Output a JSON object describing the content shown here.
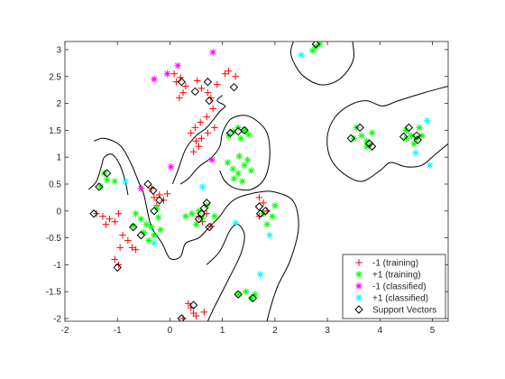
{
  "chart_data": {
    "type": "scatter",
    "title": "",
    "xlabel": "",
    "ylabel": "",
    "xlim": [
      -2,
      5.3
    ],
    "ylim": [
      -2.05,
      3.15
    ],
    "x_ticks": [
      -2,
      -1,
      0,
      1,
      2,
      3,
      4,
      5
    ],
    "y_ticks": [
      -2,
      -1.5,
      -1,
      -0.5,
      0,
      0.5,
      1,
      1.5,
      2,
      2.5,
      3
    ],
    "grid": false,
    "legend_position": "bottom-right",
    "series": [
      {
        "name": "-1 (training)",
        "marker": "plus",
        "color": "#ff0000",
        "points": [
          [
            0.08,
            2.55
          ],
          [
            0.2,
            2.48
          ],
          [
            0.12,
            2.4
          ],
          [
            0.3,
            2.32
          ],
          [
            0.25,
            2.2
          ],
          [
            0.18,
            2.1
          ],
          [
            0.52,
            2.42
          ],
          [
            0.6,
            2.28
          ],
          [
            0.72,
            2.2
          ],
          [
            0.78,
            2.1
          ],
          [
            0.9,
            2.35
          ],
          [
            1.05,
            2.55
          ],
          [
            1.12,
            2.6
          ],
          [
            1.25,
            2.5
          ],
          [
            0.82,
            1.9
          ],
          [
            0.7,
            1.75
          ],
          [
            0.58,
            1.65
          ],
          [
            0.48,
            1.55
          ],
          [
            0.4,
            1.45
          ],
          [
            0.5,
            1.3
          ],
          [
            0.6,
            1.35
          ],
          [
            0.72,
            1.45
          ],
          [
            0.85,
            1.55
          ],
          [
            0.55,
            1.2
          ],
          [
            0.45,
            1.1
          ],
          [
            -0.35,
            0.42
          ],
          [
            -0.3,
            0.25
          ],
          [
            -0.2,
            0.3
          ],
          [
            -0.12,
            0.2
          ],
          [
            -0.05,
            0.32
          ],
          [
            -0.25,
            0.1
          ],
          [
            -1.4,
            -0.05
          ],
          [
            -1.28,
            -0.1
          ],
          [
            -1.15,
            -0.15
          ],
          [
            -1.05,
            -0.2
          ],
          [
            -1.22,
            -0.25
          ],
          [
            -0.98,
            -0.05
          ],
          [
            -0.9,
            -0.45
          ],
          [
            -0.8,
            -0.55
          ],
          [
            -0.72,
            -0.68
          ],
          [
            -0.65,
            -0.72
          ],
          [
            -0.95,
            -0.68
          ],
          [
            -1.05,
            -0.9
          ],
          [
            -0.98,
            -1.0
          ],
          [
            0.55,
            -0.1
          ],
          [
            0.62,
            -0.2
          ],
          [
            0.7,
            -0.05
          ],
          [
            0.78,
            -0.28
          ],
          [
            1.7,
            0.25
          ],
          [
            1.78,
            0.15
          ],
          [
            1.85,
            0.0
          ],
          [
            1.7,
            -0.1
          ],
          [
            0.4,
            -1.8
          ],
          [
            0.45,
            -1.9
          ],
          [
            0.5,
            -1.95
          ],
          [
            0.65,
            -1.88
          ],
          [
            0.35,
            -1.72
          ],
          [
            0.25,
            -2.0
          ]
        ]
      },
      {
        "name": "+1 (training)",
        "marker": "asterisk",
        "color": "#00ff00",
        "points": [
          [
            1.12,
            1.4
          ],
          [
            1.2,
            1.48
          ],
          [
            1.3,
            1.55
          ],
          [
            1.42,
            1.5
          ],
          [
            1.35,
            1.35
          ],
          [
            1.5,
            1.42
          ],
          [
            1.1,
            0.9
          ],
          [
            1.2,
            0.78
          ],
          [
            1.3,
            0.7
          ],
          [
            1.42,
            0.85
          ],
          [
            1.55,
            0.75
          ],
          [
            1.22,
            0.6
          ],
          [
            1.38,
            0.55
          ],
          [
            1.32,
            1.02
          ],
          [
            1.48,
            0.95
          ],
          [
            -1.25,
            0.7
          ],
          [
            -1.2,
            0.58
          ],
          [
            -1.05,
            0.55
          ],
          [
            -1.32,
            0.45
          ],
          [
            -0.65,
            -0.05
          ],
          [
            -0.55,
            -0.15
          ],
          [
            -0.45,
            -0.25
          ],
          [
            -0.35,
            -0.3
          ],
          [
            -0.5,
            -0.4
          ],
          [
            -0.3,
            -0.45
          ],
          [
            -0.7,
            -0.28
          ],
          [
            -0.22,
            -0.12
          ],
          [
            -0.18,
            -0.35
          ],
          [
            -0.4,
            -0.55
          ],
          [
            -0.25,
            0.05
          ],
          [
            0.3,
            -0.1
          ],
          [
            0.42,
            -0.05
          ],
          [
            0.55,
            0.0
          ],
          [
            0.62,
            -0.12
          ],
          [
            0.7,
            0.1
          ],
          [
            0.85,
            -0.1
          ],
          [
            0.5,
            -0.25
          ],
          [
            1.95,
            -0.1
          ],
          [
            1.85,
            -0.25
          ],
          [
            2.0,
            0.1
          ],
          [
            1.78,
            -0.05
          ],
          [
            1.3,
            -1.55
          ],
          [
            1.45,
            -1.5
          ],
          [
            1.55,
            -1.62
          ],
          [
            1.62,
            -1.55
          ],
          [
            3.55,
            1.55
          ],
          [
            3.65,
            1.4
          ],
          [
            3.75,
            1.3
          ],
          [
            3.85,
            1.45
          ],
          [
            3.75,
            1.2
          ],
          [
            3.5,
            1.35
          ],
          [
            4.5,
            1.5
          ],
          [
            4.6,
            1.4
          ],
          [
            4.7,
            1.35
          ],
          [
            4.75,
            1.55
          ],
          [
            4.65,
            1.25
          ],
          [
            4.8,
            1.4
          ],
          [
            4.5,
            1.35
          ],
          [
            2.78,
            3.05
          ],
          [
            2.85,
            3.1
          ],
          [
            2.72,
            2.98
          ]
        ]
      },
      {
        "name": "-1 (classified)",
        "marker": "asterisk",
        "color": "#ff00ff",
        "points": [
          [
            -0.3,
            2.45
          ],
          [
            -0.05,
            2.55
          ],
          [
            0.15,
            2.7
          ],
          [
            0.82,
            2.95
          ],
          [
            0.02,
            0.82
          ],
          [
            0.8,
            0.95
          ],
          [
            -0.55,
            0.42
          ]
        ]
      },
      {
        "name": "+1 (classified)",
        "marker": "asterisk",
        "color": "#00ffff",
        "points": [
          [
            2.5,
            2.9
          ],
          [
            0.62,
            0.45
          ],
          [
            -0.85,
            0.55
          ],
          [
            -0.3,
            -0.6
          ],
          [
            1.25,
            -0.22
          ],
          [
            1.9,
            -0.45
          ],
          [
            1.72,
            -1.18
          ],
          [
            4.9,
            1.68
          ],
          [
            4.68,
            1.08
          ],
          [
            4.95,
            0.85
          ]
        ]
      },
      {
        "name": "Support Vectors",
        "marker": "diamond",
        "color": "#000000",
        "points": [
          [
            -1.2,
            0.7
          ],
          [
            -1.35,
            0.45
          ],
          [
            -0.42,
            0.5
          ],
          [
            -0.32,
            0.38
          ],
          [
            -0.2,
            0.2
          ],
          [
            -0.7,
            -0.3
          ],
          [
            -0.55,
            -0.45
          ],
          [
            -1.45,
            -0.05
          ],
          [
            -1.0,
            -1.05
          ],
          [
            -0.3,
            0.0
          ],
          [
            0.22,
            2.4
          ],
          [
            0.48,
            2.22
          ],
          [
            0.72,
            2.4
          ],
          [
            0.75,
            2.05
          ],
          [
            1.22,
            2.3
          ],
          [
            1.3,
            1.48
          ],
          [
            1.15,
            1.45
          ],
          [
            1.42,
            1.5
          ],
          [
            0.6,
            -0.05
          ],
          [
            0.65,
            0.05
          ],
          [
            0.7,
            0.15
          ],
          [
            0.55,
            -0.15
          ],
          [
            0.75,
            -0.3
          ],
          [
            1.7,
            0.08
          ],
          [
            1.82,
            0.0
          ],
          [
            1.72,
            -0.05
          ],
          [
            1.58,
            -1.62
          ],
          [
            1.3,
            -1.55
          ],
          [
            0.45,
            -1.75
          ],
          [
            0.22,
            -2.0
          ],
          [
            3.62,
            1.55
          ],
          [
            3.45,
            1.35
          ],
          [
            3.8,
            1.25
          ],
          [
            3.85,
            1.2
          ],
          [
            4.55,
            1.55
          ],
          [
            4.45,
            1.38
          ],
          [
            4.7,
            1.4
          ],
          [
            4.72,
            1.32
          ],
          [
            2.78,
            3.1
          ]
        ]
      }
    ],
    "boundary_curves": [
      [
        [
          2.35,
          3.15
        ],
        [
          2.3,
          2.95
        ],
        [
          2.38,
          2.72
        ],
        [
          2.55,
          2.5
        ],
        [
          2.85,
          2.35
        ],
        [
          3.15,
          2.4
        ],
        [
          3.38,
          2.6
        ],
        [
          3.5,
          2.85
        ],
        [
          3.48,
          3.15
        ]
      ],
      [
        [
          -1.45,
          1.3
        ],
        [
          -1.25,
          1.35
        ],
        [
          -0.95,
          1.22
        ],
        [
          -0.75,
          0.9
        ],
        [
          -0.6,
          0.55
        ],
        [
          -0.5,
          0.32
        ],
        [
          -0.45,
          0.1
        ],
        [
          -0.35,
          -0.3
        ],
        [
          -0.15,
          -0.6
        ],
        [
          0.0,
          -0.88
        ],
        [
          0.2,
          -0.85
        ],
        [
          0.3,
          -0.6
        ],
        [
          0.55,
          -0.5
        ],
        [
          0.75,
          -0.3
        ],
        [
          0.95,
          -0.1
        ],
        [
          1.1,
          0.1
        ],
        [
          1.3,
          0.25
        ],
        [
          1.7,
          0.35
        ],
        [
          2.0,
          0.35
        ],
        [
          2.35,
          0.18
        ],
        [
          2.45,
          -0.3
        ],
        [
          2.3,
          -0.9
        ],
        [
          2.05,
          -1.4
        ],
        [
          1.9,
          -1.85
        ],
        [
          1.85,
          -2.05
        ]
      ],
      [
        [
          -1.55,
          0.4
        ],
        [
          -1.4,
          0.55
        ],
        [
          -1.3,
          0.85
        ],
        [
          -1.25,
          1.0
        ],
        [
          -1.1,
          1.05
        ],
        [
          -0.95,
          0.85
        ],
        [
          -0.85,
          0.55
        ],
        [
          -0.8,
          0.3
        ]
      ],
      [
        [
          0.05,
          0.5
        ],
        [
          0.15,
          0.75
        ],
        [
          0.3,
          1.15
        ],
        [
          0.5,
          1.4
        ],
        [
          0.7,
          1.55
        ],
        [
          0.95,
          1.85
        ],
        [
          1.05,
          1.95
        ],
        [
          0.9,
          2.05
        ],
        [
          1.0,
          2.15
        ]
      ],
      [
        [
          0.2,
          0.5
        ],
        [
          0.35,
          0.6
        ],
        [
          0.55,
          0.82
        ],
        [
          0.8,
          1.0
        ],
        [
          0.95,
          1.2
        ],
        [
          1.0,
          1.45
        ],
        [
          1.15,
          1.7
        ],
        [
          1.4,
          1.78
        ],
        [
          1.62,
          1.7
        ],
        [
          1.85,
          1.45
        ],
        [
          1.9,
          1.0
        ],
        [
          1.8,
          0.6
        ],
        [
          1.55,
          0.4
        ],
        [
          1.25,
          0.42
        ],
        [
          1.05,
          0.55
        ],
        [
          0.95,
          0.75
        ]
      ],
      [
        [
          0.7,
          -1.0
        ],
        [
          0.95,
          -0.75
        ],
        [
          1.15,
          -0.35
        ],
        [
          1.3,
          -0.25
        ],
        [
          1.42,
          -0.45
        ],
        [
          1.35,
          -0.8
        ],
        [
          1.1,
          -1.3
        ],
        [
          0.85,
          -1.78
        ],
        [
          0.72,
          -2.05
        ]
      ],
      [
        [
          5.3,
          2.32
        ],
        [
          4.85,
          2.2
        ],
        [
          4.35,
          2.05
        ],
        [
          4.05,
          1.95
        ],
        [
          3.75,
          2.05
        ],
        [
          3.45,
          1.98
        ],
        [
          3.15,
          1.75
        ],
        [
          3.0,
          1.4
        ],
        [
          3.05,
          1.0
        ],
        [
          3.3,
          0.7
        ],
        [
          3.65,
          0.55
        ],
        [
          4.0,
          0.75
        ],
        [
          4.2,
          0.9
        ],
        [
          4.5,
          0.82
        ],
        [
          4.8,
          0.85
        ],
        [
          5.05,
          1.05
        ],
        [
          5.3,
          1.25
        ]
      ]
    ]
  }
}
